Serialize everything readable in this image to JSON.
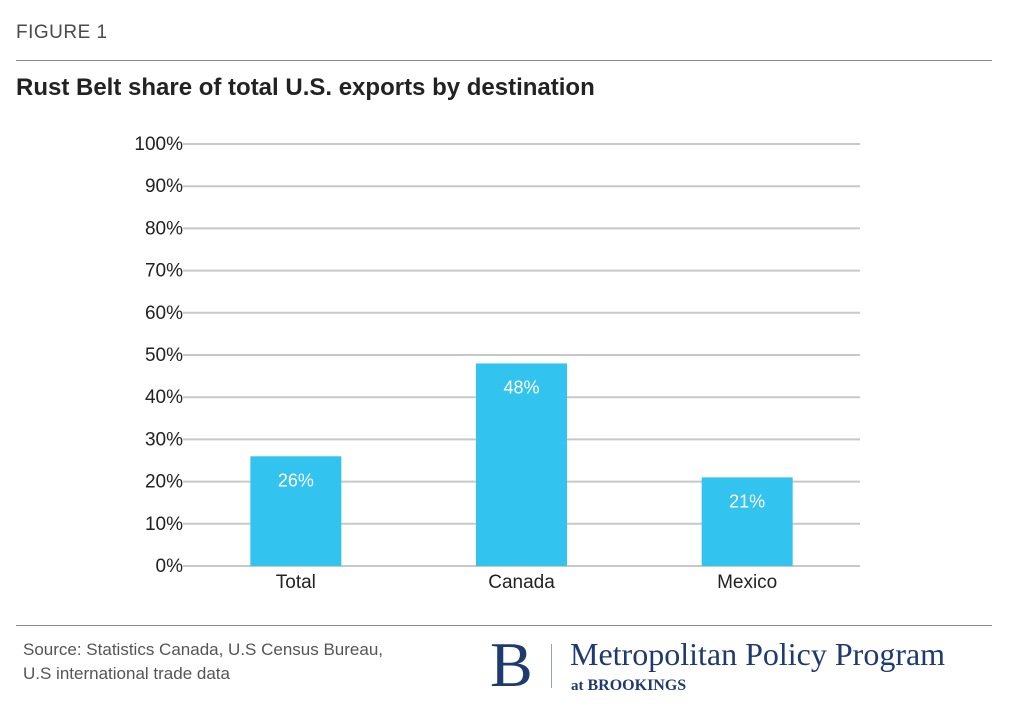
{
  "figure_label": "FIGURE 1",
  "source": {
    "line1": "Source: Statistics Canada, U.S Census Bureau,",
    "line2": "U.S international trade data"
  },
  "logo": {
    "mark": "B",
    "name": "Metropolitan Policy Program",
    "at": "at",
    "org": "BROOKINGS"
  },
  "colors": {
    "bar": "#33c3ef",
    "grid": "#c8c8c8"
  },
  "chart_data": {
    "type": "bar",
    "title": "Rust Belt share of total U.S. exports by destination",
    "xlabel": "",
    "ylabel": "",
    "categories": [
      "Total",
      "Canada",
      "Mexico"
    ],
    "values": [
      26,
      48,
      21
    ],
    "data_labels": [
      "26%",
      "48%",
      "21%"
    ],
    "ylim": [
      0,
      100
    ],
    "yticks": [
      0,
      10,
      20,
      30,
      40,
      50,
      60,
      70,
      80,
      90,
      100
    ],
    "ytick_labels": [
      "0%",
      "10%",
      "20%",
      "30%",
      "40%",
      "50%",
      "60%",
      "70%",
      "80%",
      "90%",
      "100%"
    ],
    "grid": true,
    "legend": "none"
  }
}
